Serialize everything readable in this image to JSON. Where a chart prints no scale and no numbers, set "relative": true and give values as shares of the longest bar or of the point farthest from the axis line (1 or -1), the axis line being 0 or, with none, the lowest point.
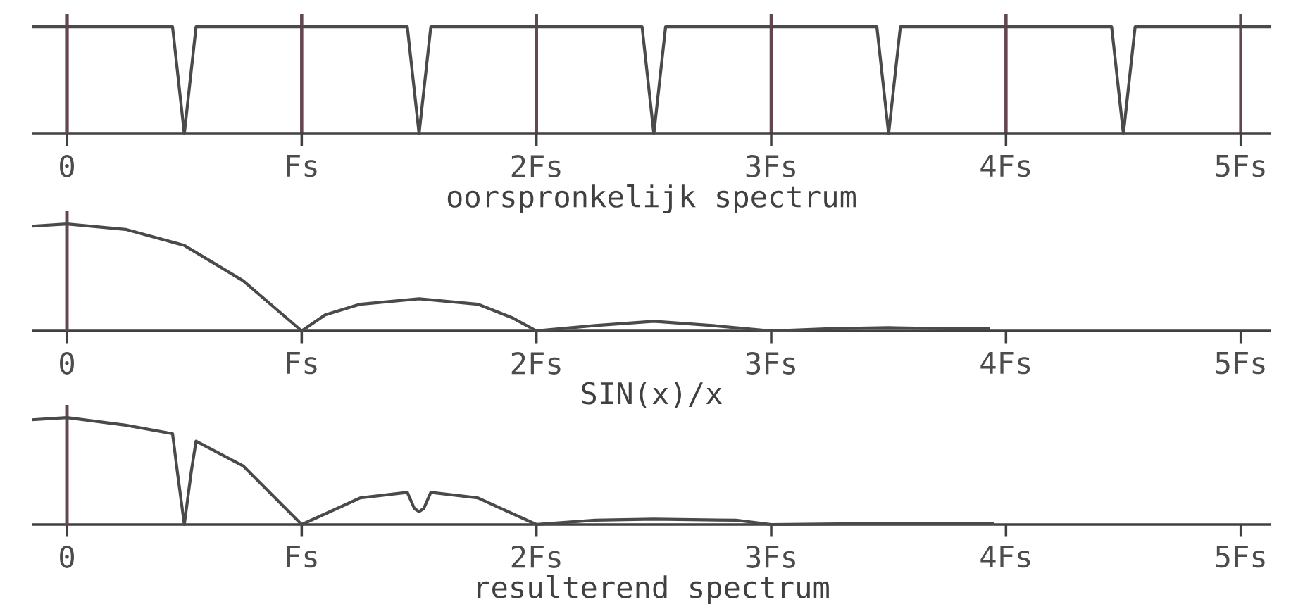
{
  "chart_data": [
    {
      "type": "line",
      "xlabel": "oorspronkelijk spectrum",
      "relative": true,
      "grid": "x",
      "color": "#4a4a4a",
      "xlim": [
        -0.15,
        5.13
      ],
      "xticks": [
        {
          "value": 0,
          "label": "0"
        },
        {
          "value": 1,
          "label": "Fs"
        },
        {
          "value": 2,
          "label": "2Fs"
        },
        {
          "value": 3,
          "label": "3Fs"
        },
        {
          "value": 4,
          "label": "4Fs"
        },
        {
          "value": 5,
          "label": "5Fs"
        }
      ],
      "x": [
        -0.15,
        0.45,
        0.47,
        0.5,
        0.53,
        0.55,
        1.45,
        1.47,
        1.5,
        1.53,
        1.55,
        2.45,
        2.47,
        2.5,
        2.53,
        2.55,
        3.45,
        3.47,
        3.5,
        3.53,
        3.55,
        4.45,
        4.47,
        4.5,
        4.53,
        4.55,
        5.13
      ],
      "values": [
        1,
        1,
        0.6,
        0,
        0.6,
        1,
        1,
        0.6,
        0,
        0.6,
        1,
        1,
        0.6,
        0,
        0.6,
        1,
        1,
        0.6,
        0,
        0.6,
        1,
        1,
        0.6,
        0,
        0.6,
        1,
        1
      ]
    },
    {
      "type": "line",
      "xlabel": "SIN(x)/x",
      "relative": true,
      "color": "#4a4a4a",
      "xlim": [
        -0.15,
        5.13
      ],
      "xticks": [
        {
          "value": 0,
          "label": "0"
        },
        {
          "value": 1,
          "label": "Fs"
        },
        {
          "value": 2,
          "label": "2Fs"
        },
        {
          "value": 3,
          "label": "3Fs"
        },
        {
          "value": 4,
          "label": "4Fs"
        },
        {
          "value": 5,
          "label": "5Fs"
        }
      ],
      "x": [
        -0.15,
        0,
        0.25,
        0.5,
        0.75,
        1,
        1.1,
        1.25,
        1.5,
        1.75,
        1.9,
        2,
        2.25,
        2.5,
        2.75,
        3,
        3.25,
        3.5,
        3.75,
        3.93
      ],
      "values": [
        0.98,
        1,
        0.95,
        0.8,
        0.47,
        0,
        0.15,
        0.25,
        0.3,
        0.25,
        0.12,
        0,
        0.05,
        0.09,
        0.05,
        0,
        0.02,
        0.03,
        0.02,
        0.02
      ]
    },
    {
      "type": "line",
      "xlabel": "resulterend spectrum",
      "relative": true,
      "color": "#4a4a4a",
      "xlim": [
        -0.15,
        5.13
      ],
      "xticks": [
        {
          "value": 0,
          "label": "0"
        },
        {
          "value": 1,
          "label": "Fs"
        },
        {
          "value": 2,
          "label": "2Fs"
        },
        {
          "value": 3,
          "label": "3Fs"
        },
        {
          "value": 4,
          "label": "4Fs"
        },
        {
          "value": 5,
          "label": "5Fs"
        }
      ],
      "x": [
        -0.15,
        0,
        0.25,
        0.45,
        0.47,
        0.5,
        0.53,
        0.55,
        0.75,
        1,
        1.25,
        1.45,
        1.48,
        1.5,
        1.52,
        1.55,
        1.75,
        2,
        2.25,
        2.5,
        2.85,
        3,
        3.5,
        3.95
      ],
      "values": [
        0.98,
        1,
        0.93,
        0.85,
        0.5,
        0,
        0.5,
        0.78,
        0.55,
        0,
        0.25,
        0.3,
        0.15,
        0.12,
        0.15,
        0.3,
        0.25,
        0,
        0.04,
        0.05,
        0.04,
        0,
        0.01,
        0.01
      ]
    }
  ]
}
